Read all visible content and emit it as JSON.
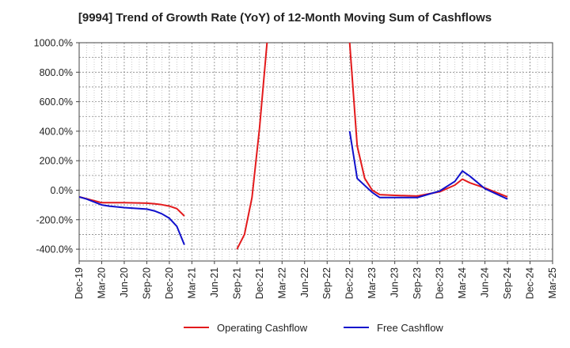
{
  "chart_data": {
    "type": "line",
    "title": "[9994]  Trend of Growth Rate (YoY) of 12-Month Moving Sum of Cashflows",
    "xlabel": "",
    "ylabel": "",
    "x_tick_labels": [
      "Dec-19",
      "Mar-20",
      "Jun-20",
      "Sep-20",
      "Dec-20",
      "Mar-21",
      "Jun-21",
      "Sep-21",
      "Dec-21",
      "Mar-22",
      "Jun-22",
      "Sep-22",
      "Dec-22",
      "Mar-23",
      "Jun-23",
      "Sep-23",
      "Dec-23",
      "Mar-24",
      "Jun-24",
      "Sep-24",
      "Dec-24",
      "Mar-25"
    ],
    "y_tick_labels": [
      "1000.0%",
      "800.0%",
      "600.0%",
      "400.0%",
      "200.0%",
      "0.0%",
      "-200.0%",
      "-400.0%"
    ],
    "y_ticks": [
      1000,
      800,
      600,
      400,
      200,
      0,
      -200,
      -400
    ],
    "ylim": [
      -480,
      1000
    ],
    "grid": true,
    "legend_position": "bottom-center",
    "series": [
      {
        "name": "Operating Cashflow",
        "color": "#e31a1c",
        "points": [
          [
            "Dec-19",
            -45
          ],
          [
            "Mar-20",
            -85
          ],
          [
            "Apr-20",
            -85
          ],
          [
            "Jun-20",
            -85
          ],
          [
            "Sep-20",
            -88
          ],
          [
            "Oct-20",
            -92
          ],
          [
            "Nov-20",
            -98
          ],
          [
            "Dec-20",
            -108
          ],
          [
            "Jan-21",
            -125
          ],
          [
            "Feb-21",
            -175
          ],
          [
            "Sep-21",
            -400
          ],
          [
            "Oct-21",
            -300
          ],
          [
            "Nov-21",
            -50
          ],
          [
            "Dec-21",
            420
          ],
          [
            "Jan-22",
            1000
          ],
          [
            "Dec-22",
            1000
          ],
          [
            "Jan-23",
            300
          ],
          [
            "Feb-23",
            80
          ],
          [
            "Mar-23",
            0
          ],
          [
            "Apr-23",
            -30
          ],
          [
            "Jun-23",
            -35
          ],
          [
            "Sep-23",
            -40
          ],
          [
            "Dec-23",
            -10
          ],
          [
            "Feb-24",
            35
          ],
          [
            "Mar-24",
            75
          ],
          [
            "Apr-24",
            50
          ],
          [
            "Jun-24",
            15
          ],
          [
            "Sep-24",
            -45
          ]
        ]
      },
      {
        "name": "Free Cashflow",
        "color": "#1010cc",
        "points": [
          [
            "Dec-19",
            -45
          ],
          [
            "Jan-20",
            -60
          ],
          [
            "Mar-20",
            -100
          ],
          [
            "Apr-20",
            -108
          ],
          [
            "Jun-20",
            -118
          ],
          [
            "Sep-20",
            -128
          ],
          [
            "Oct-20",
            -140
          ],
          [
            "Nov-20",
            -160
          ],
          [
            "Dec-20",
            -190
          ],
          [
            "Jan-21",
            -245
          ],
          [
            "Feb-21",
            -370
          ],
          [
            "Dec-22",
            400
          ],
          [
            "Jan-23",
            80
          ],
          [
            "Mar-23",
            -15
          ],
          [
            "Apr-23",
            -50
          ],
          [
            "Jun-23",
            -50
          ],
          [
            "Sep-23",
            -50
          ],
          [
            "Oct-23",
            -35
          ],
          [
            "Dec-23",
            -5
          ],
          [
            "Feb-24",
            60
          ],
          [
            "Mar-24",
            130
          ],
          [
            "Apr-24",
            95
          ],
          [
            "Jun-24",
            10
          ],
          [
            "Sep-24",
            -60
          ]
        ]
      }
    ]
  }
}
